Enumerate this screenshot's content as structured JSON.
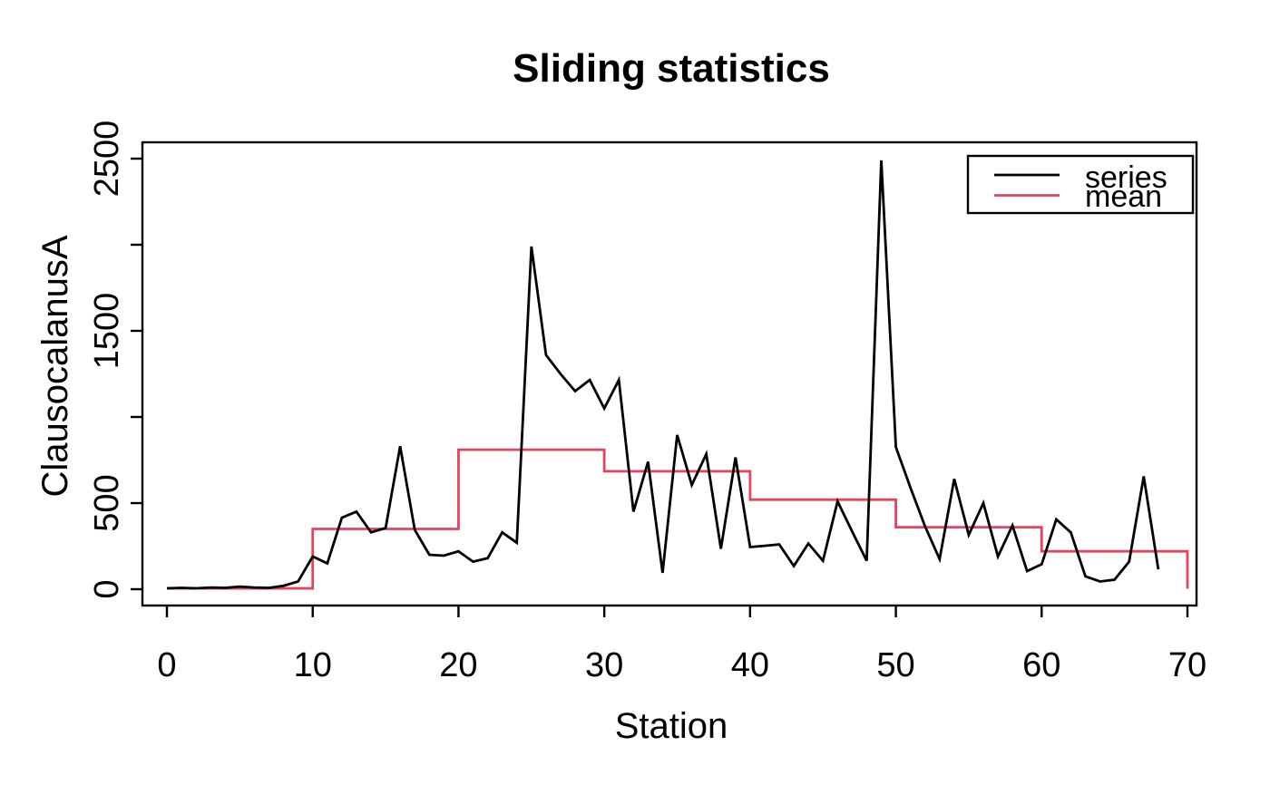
{
  "chart_data": {
    "type": "line",
    "title": "Sliding statistics",
    "xlabel": "Station",
    "ylabel": "ClausocalanusA",
    "xlim": [
      0,
      70
    ],
    "ylim": [
      0,
      2500
    ],
    "grid": false,
    "x_ticks": [
      0,
      10,
      20,
      30,
      40,
      50,
      60,
      70
    ],
    "y_ticks": [
      0,
      500,
      1000,
      1500,
      2000,
      2500
    ],
    "y_tick_labels_shown": [
      0,
      500,
      1500,
      2500
    ],
    "legend": {
      "position": "top-right",
      "entries": [
        {
          "label": "series",
          "color": "#000000"
        },
        {
          "label": "mean",
          "color": "#e8435c"
        }
      ]
    },
    "series": [
      {
        "name": "series",
        "style": "line",
        "color": "#000000",
        "x_start": 0,
        "x_step": 1,
        "values": [
          5,
          8,
          5,
          10,
          8,
          15,
          10,
          8,
          20,
          45,
          190,
          150,
          415,
          450,
          330,
          355,
          830,
          345,
          200,
          195,
          220,
          160,
          180,
          330,
          270,
          1990,
          1360,
          1250,
          1150,
          1215,
          1050,
          1215,
          450,
          740,
          95,
          895,
          605,
          785,
          235,
          765,
          245,
          252,
          260,
          135,
          265,
          165,
          510,
          335,
          165,
          2490,
          825,
          590,
          365,
          175,
          640,
          315,
          500,
          190,
          370,
          105,
          145,
          405,
          330,
          75,
          45,
          55,
          160,
          655,
          115
        ]
      },
      {
        "name": "mean",
        "style": "step",
        "color": "#e8435c",
        "steps": [
          {
            "from": 0,
            "to": 10,
            "value": 5
          },
          {
            "from": 10,
            "to": 20,
            "value": 350
          },
          {
            "from": 20,
            "to": 30,
            "value": 810
          },
          {
            "from": 30,
            "to": 40,
            "value": 685
          },
          {
            "from": 40,
            "to": 50,
            "value": 520
          },
          {
            "from": 50,
            "to": 60,
            "value": 360
          },
          {
            "from": 60,
            "to": 70,
            "value": 220
          }
        ],
        "end_drop_value": 3
      }
    ]
  }
}
